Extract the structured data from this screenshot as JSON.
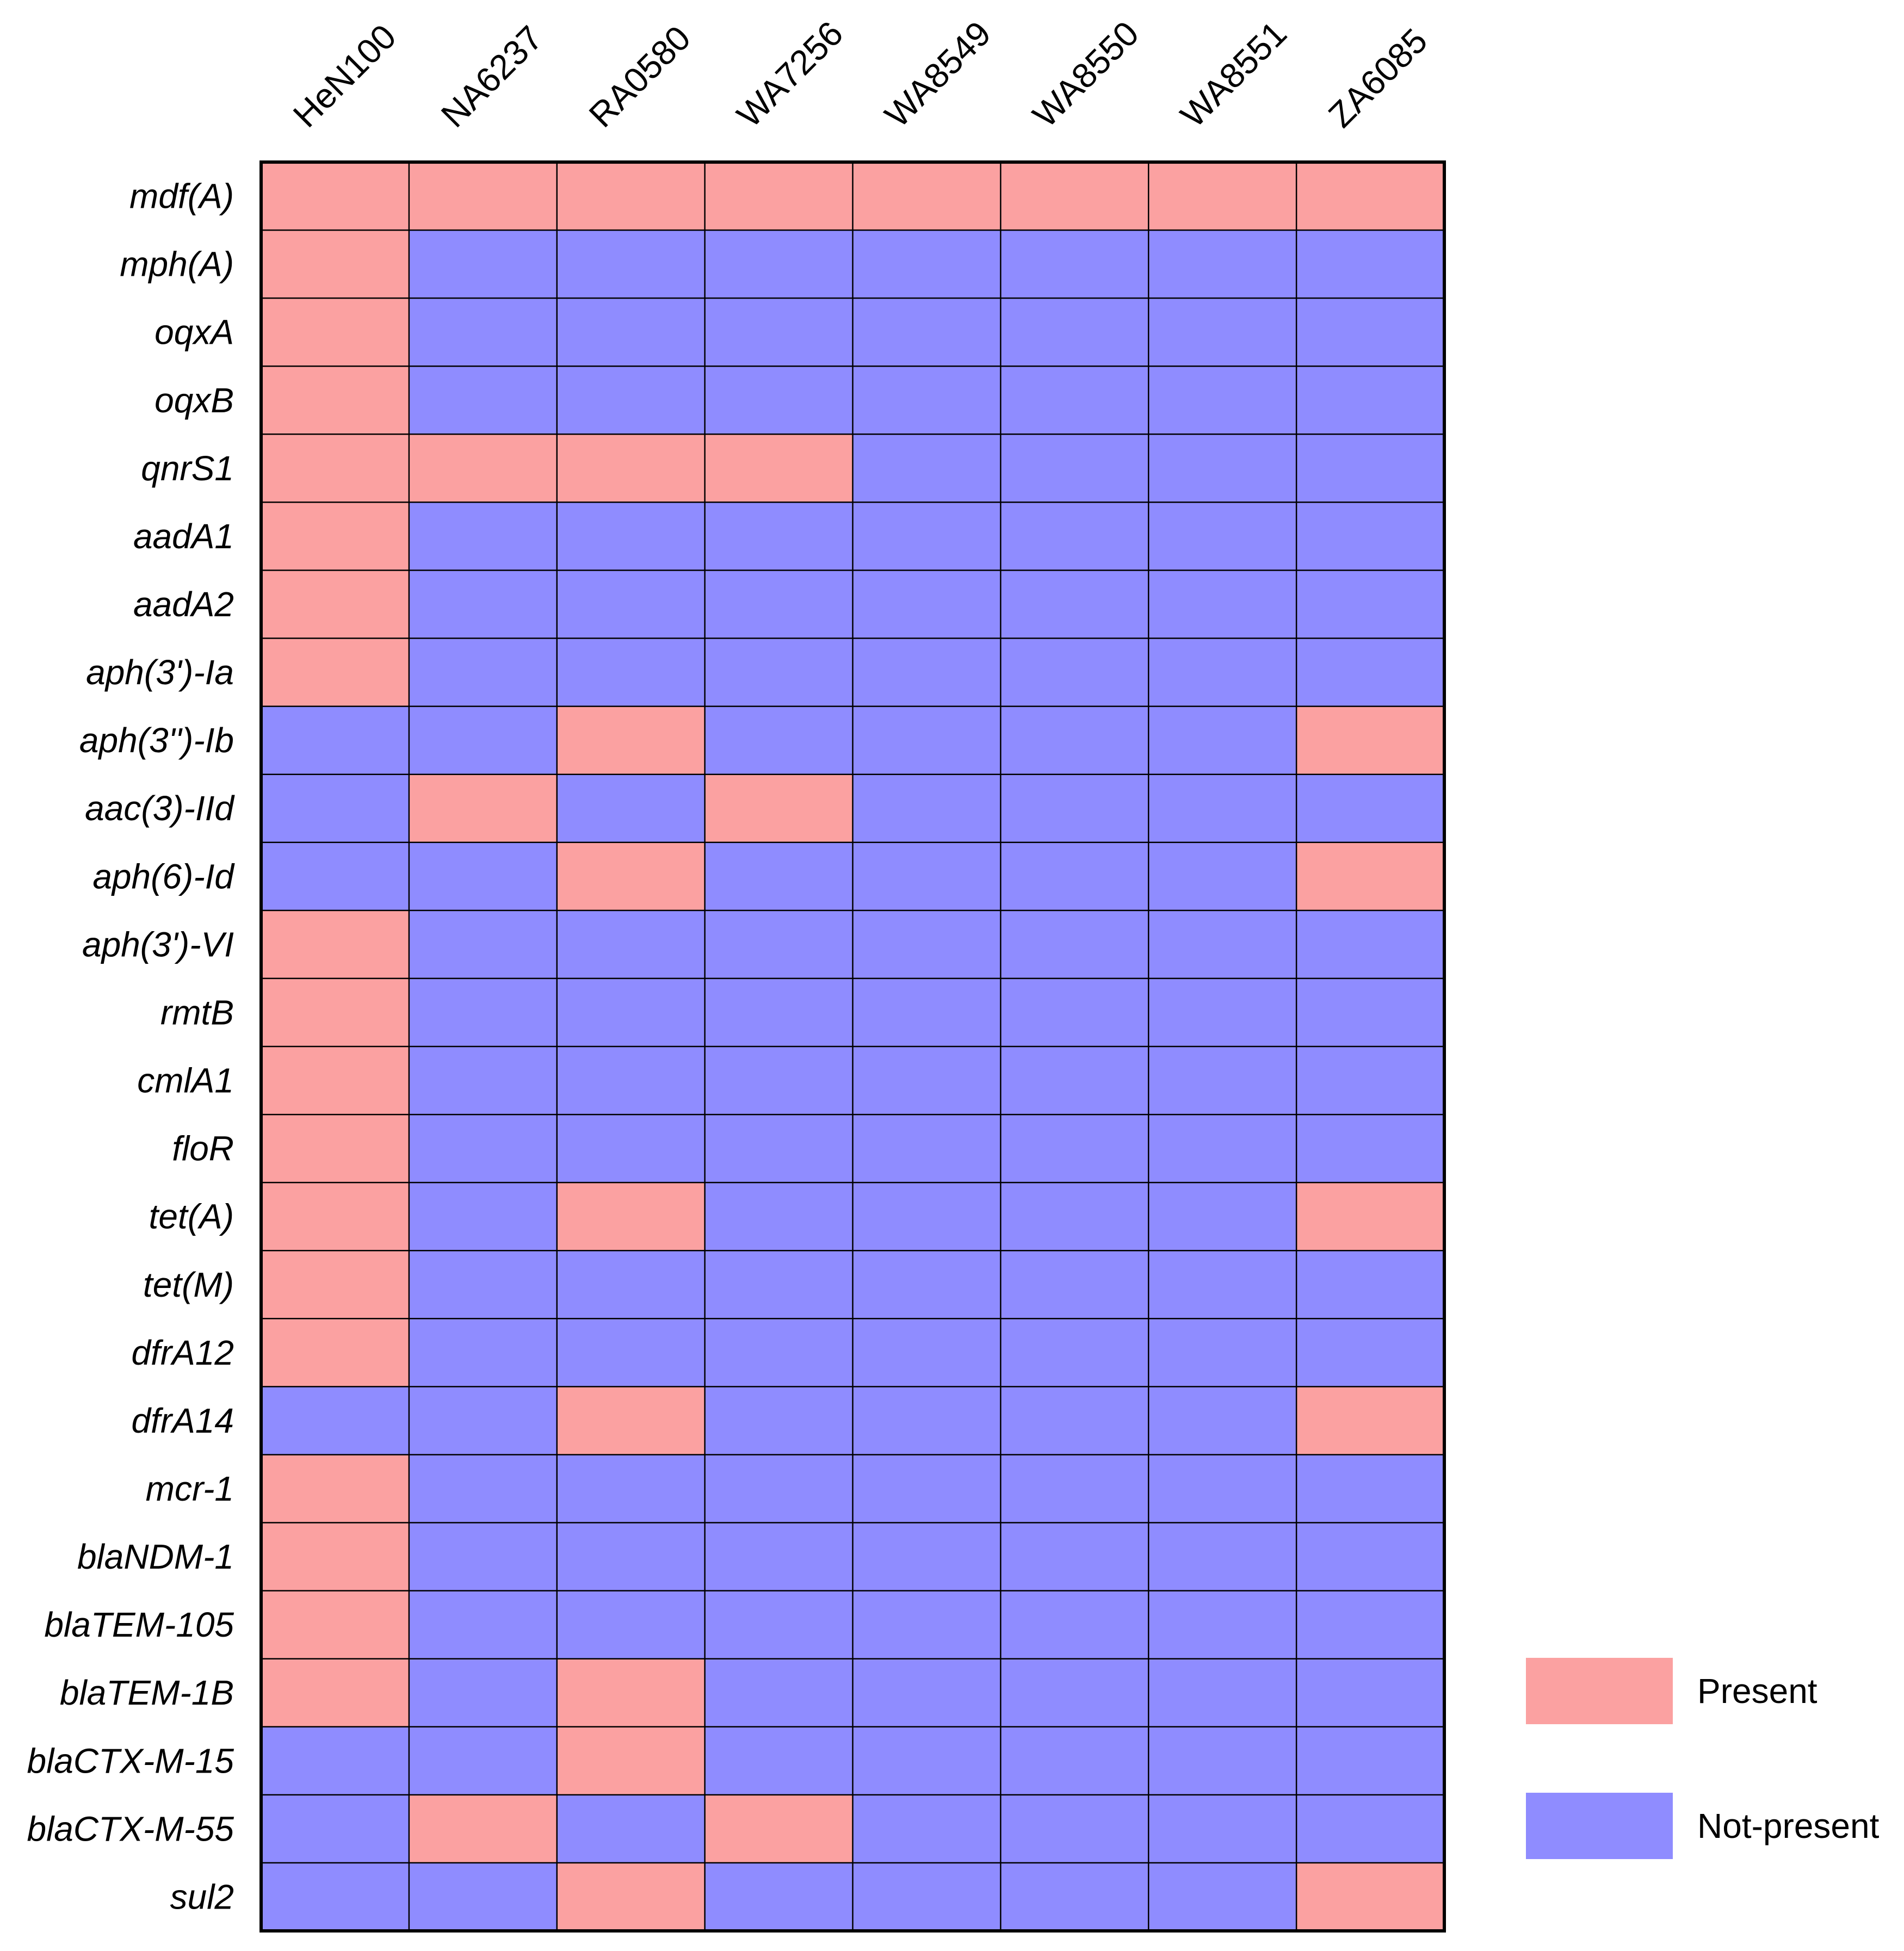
{
  "chart_data": {
    "type": "heatmap",
    "title": "",
    "columns": [
      "HeN100",
      "NA6237",
      "RA0580",
      "WA7256",
      "WA8549",
      "WA8550",
      "WA8551",
      "ZA6085"
    ],
    "rows": [
      "mdf(A)",
      "mph(A)",
      "oqxA",
      "oqxB",
      "qnrS1",
      "aadA1",
      "aadA2",
      "aph(3')-Ia",
      "aph(3'')-Ib",
      "aac(3)-IId",
      "aph(6)-Id",
      "aph(3')-VI",
      "rmtB",
      "cmlA1",
      "floR",
      "tet(A)",
      "tet(M)",
      "dfrA12",
      "dfrA14",
      "mcr-1",
      "blaNDM-1",
      "blaTEM-105",
      "blaTEM-1B",
      "blaCTX-M-15",
      "blaCTX-M-55",
      "sul2"
    ],
    "values": [
      [
        1,
        1,
        1,
        1,
        1,
        1,
        1,
        1
      ],
      [
        1,
        0,
        0,
        0,
        0,
        0,
        0,
        0
      ],
      [
        1,
        0,
        0,
        0,
        0,
        0,
        0,
        0
      ],
      [
        1,
        0,
        0,
        0,
        0,
        0,
        0,
        0
      ],
      [
        1,
        1,
        1,
        1,
        0,
        0,
        0,
        0
      ],
      [
        1,
        0,
        0,
        0,
        0,
        0,
        0,
        0
      ],
      [
        1,
        0,
        0,
        0,
        0,
        0,
        0,
        0
      ],
      [
        1,
        0,
        0,
        0,
        0,
        0,
        0,
        0
      ],
      [
        0,
        0,
        1,
        0,
        0,
        0,
        0,
        1
      ],
      [
        0,
        1,
        0,
        1,
        0,
        0,
        0,
        0
      ],
      [
        0,
        0,
        1,
        0,
        0,
        0,
        0,
        1
      ],
      [
        1,
        0,
        0,
        0,
        0,
        0,
        0,
        0
      ],
      [
        1,
        0,
        0,
        0,
        0,
        0,
        0,
        0
      ],
      [
        1,
        0,
        0,
        0,
        0,
        0,
        0,
        0
      ],
      [
        1,
        0,
        0,
        0,
        0,
        0,
        0,
        0
      ],
      [
        1,
        0,
        1,
        0,
        0,
        0,
        0,
        1
      ],
      [
        1,
        0,
        0,
        0,
        0,
        0,
        0,
        0
      ],
      [
        1,
        0,
        0,
        0,
        0,
        0,
        0,
        0
      ],
      [
        0,
        0,
        1,
        0,
        0,
        0,
        0,
        1
      ],
      [
        1,
        0,
        0,
        0,
        0,
        0,
        0,
        0
      ],
      [
        1,
        0,
        0,
        0,
        0,
        0,
        0,
        0
      ],
      [
        1,
        0,
        0,
        0,
        0,
        0,
        0,
        0
      ],
      [
        1,
        0,
        1,
        0,
        0,
        0,
        0,
        0
      ],
      [
        0,
        0,
        1,
        0,
        0,
        0,
        0,
        0
      ],
      [
        0,
        1,
        0,
        1,
        0,
        0,
        0,
        0
      ],
      [
        0,
        0,
        1,
        0,
        0,
        0,
        0,
        1
      ]
    ],
    "legend": {
      "position": "bottom-right",
      "entries": [
        {
          "label": "Present",
          "value": 1,
          "color": "#fba1a1"
        },
        {
          "label": "Not-present",
          "value": 0,
          "color": "#8f8cff"
        }
      ]
    },
    "grid": true
  }
}
